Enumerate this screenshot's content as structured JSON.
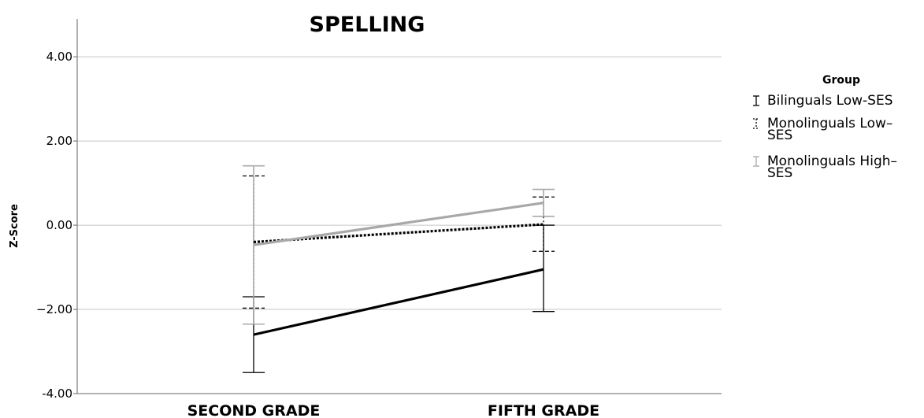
{
  "chart_data": {
    "type": "line",
    "title": "SPELLING",
    "xlabel": "",
    "ylabel": "Z-Score",
    "categories": [
      "SECOND GRADE",
      "FIFTH GRADE"
    ],
    "ylim": [
      -4,
      4.9
    ],
    "yticks": [
      4,
      2,
      0,
      -2,
      -4
    ],
    "ytick_labels": [
      "4.00",
      "2.00",
      "0.00",
      "−2.00",
      "-4.00"
    ],
    "grid": "horizontal",
    "error_bars": true,
    "legend": {
      "title": "Group",
      "position": "right",
      "entries": [
        "Bilinguals Low-SES",
        "Monolinguals Low-SES",
        "Monolinguals High-SES"
      ],
      "display_lines": [
        [
          "Bilinguals Low-SES"
        ],
        [
          "Monolinguals Low–",
          "SES"
        ],
        [
          "Monolinguals High–",
          "SES"
        ]
      ]
    },
    "series": [
      {
        "name": "Bilinguals Low-SES",
        "values": [
          -2.6,
          -1.05
        ],
        "err_low": [
          -3.5,
          -2.05
        ],
        "err_high": [
          -1.7,
          0.0
        ],
        "color": "#000000",
        "style": "solid"
      },
      {
        "name": "Monolinguals Low-SES",
        "values": [
          -0.4,
          0.02
        ],
        "err_low": [
          -1.97,
          -0.62
        ],
        "err_high": [
          1.17,
          0.67
        ],
        "color": "#000000",
        "style": "dotted"
      },
      {
        "name": "Monolinguals High-SES",
        "values": [
          -0.47,
          0.53
        ],
        "err_low": [
          -2.35,
          0.21
        ],
        "err_high": [
          1.41,
          0.85
        ],
        "color": "#a8a8a8",
        "style": "solid"
      }
    ]
  }
}
